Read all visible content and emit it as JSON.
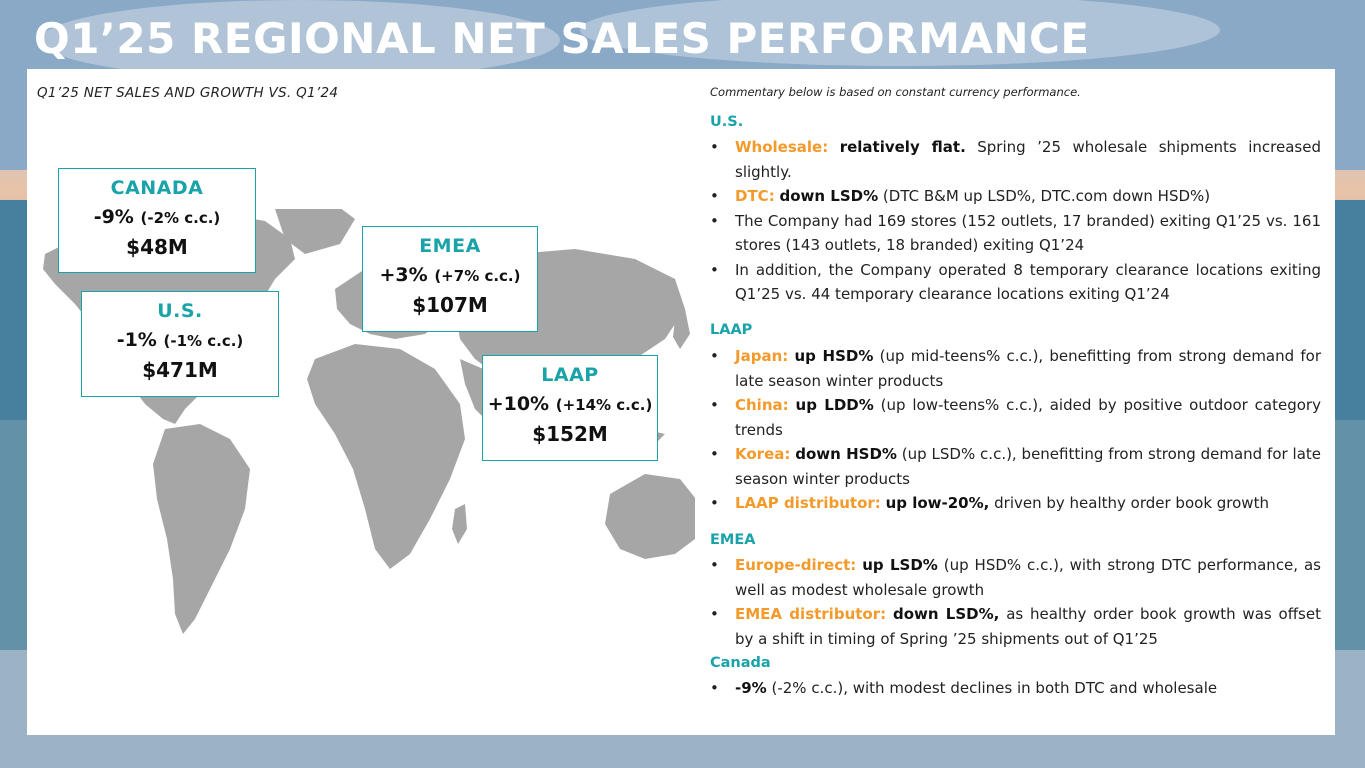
{
  "slide": {
    "title": "Q1’25 REGIONAL NET SALES PERFORMANCE"
  },
  "chart": {
    "heading": "Q1’25 NET SALES AND GROWTH VS. Q1’24",
    "regions": [
      {
        "name": "CANADA",
        "growth": "-9%",
        "cc": "(-2% c.c.)",
        "sales": "$48M"
      },
      {
        "name": "U.S.",
        "growth": "-1%",
        "cc": "(-1% c.c.)",
        "sales": "$471M"
      },
      {
        "name": "EMEA",
        "growth": "+3%",
        "cc": "(+7% c.c.)",
        "sales": "$107M"
      },
      {
        "name": "LAAP",
        "growth": "+10%",
        "cc": "(+14% c.c.)",
        "sales": "$152M"
      }
    ]
  },
  "commentary": {
    "intro": "Commentary below is based on constant currency performance.",
    "us": {
      "heading": "U.S.",
      "items": [
        {
          "label": "Wholesale:",
          "bold": "relatively flat.",
          "text": "Spring ’25 wholesale shipments increased slightly."
        },
        {
          "label": "DTC:",
          "bold": "down LSD%",
          "text": "(DTC B&M up LSD%, DTC.com down HSD%)"
        },
        {
          "label": "",
          "bold": "",
          "text": "The Company had 169 stores (152 outlets, 17 branded) exiting Q1’25 vs. 161 stores (143 outlets, 18 branded) exiting Q1’24"
        },
        {
          "label": "",
          "bold": "",
          "text": "In addition, the Company operated 8 temporary clearance locations exiting Q1’25 vs. 44 temporary clearance locations exiting Q1’24"
        }
      ]
    },
    "laap": {
      "heading": "LAAP",
      "items": [
        {
          "label": "Japan:",
          "bold": "up HSD%",
          "text": "(up mid-teens% c.c.), benefitting from strong demand for late season winter products"
        },
        {
          "label": "China:",
          "bold": "up LDD%",
          "text": "(up low-teens% c.c.), aided by positive outdoor category trends"
        },
        {
          "label": "Korea:",
          "bold": "down HSD%",
          "text": "(up LSD% c.c.), benefitting from strong demand for late season winter products"
        },
        {
          "label": "LAAP distributor:",
          "bold": "up low-20%,",
          "text": "driven by healthy order book growth"
        }
      ]
    },
    "emea": {
      "heading": "EMEA",
      "items": [
        {
          "label": "Europe-direct:",
          "bold": "up LSD%",
          "text": "(up HSD% c.c.), with strong DTC performance, as well as modest wholesale growth"
        },
        {
          "label": "EMEA distributor:",
          "bold": "down LSD%,",
          "text": "as healthy order book growth was offset by a shift in timing of Spring ’25 shipments out of Q1’25"
        }
      ]
    },
    "canada": {
      "heading": "Canada",
      "items": [
        {
          "label": "",
          "bold": "-9%",
          "text": "(-2% c.c.), with modest declines in both DTC and wholesale"
        }
      ]
    }
  }
}
